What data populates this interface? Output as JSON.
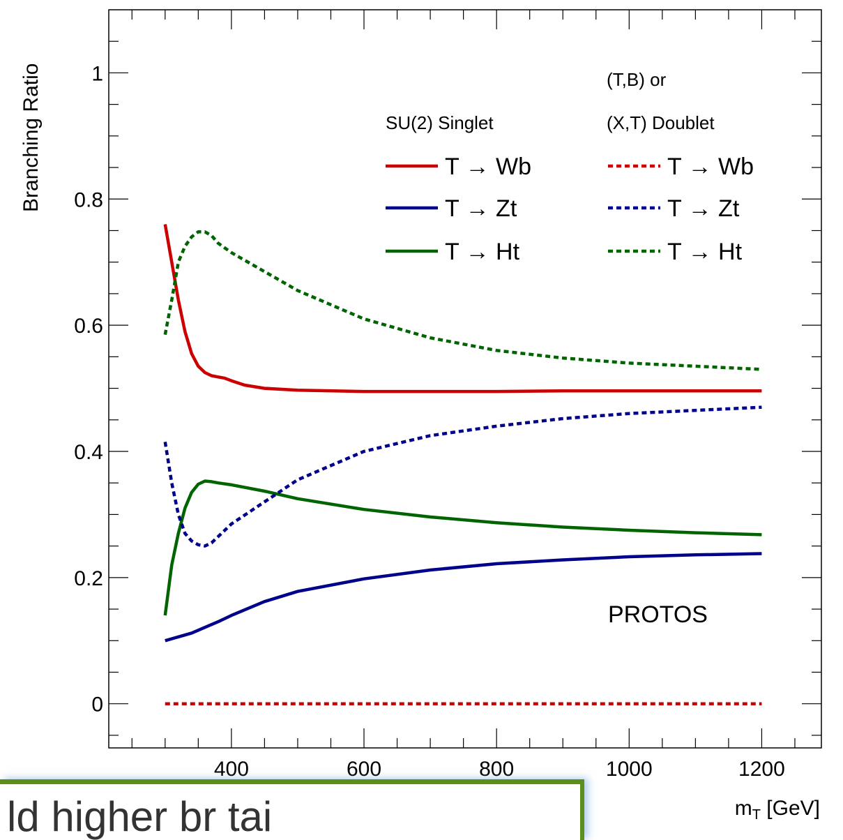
{
  "chart_data": {
    "type": "line",
    "xlabel": "m",
    "xlabel_sub": "T",
    "xlabel_unit": " [GeV]",
    "ylabel": "Branching Ratio",
    "xlim": [
      215,
      1290
    ],
    "ylim": [
      -0.07,
      1.1
    ],
    "xticks": [
      400,
      600,
      800,
      1000,
      1200
    ],
    "yticks": [
      0,
      0.2,
      0.4,
      0.6,
      0.8,
      1
    ],
    "grid": false,
    "legend_placement": "top-right",
    "legend_headers": [
      "SU(2) Singlet",
      "(T,B) or",
      "(X,T) Doublet"
    ],
    "annotation": "PROTOS",
    "arrow_glyph": "→",
    "series": [
      {
        "name": "T → Wb",
        "group": "singlet",
        "color": "#cc0000",
        "style": "solid",
        "x": [
          300,
          310,
          320,
          330,
          340,
          350,
          360,
          370,
          380,
          390,
          400,
          420,
          450,
          500,
          600,
          700,
          800,
          900,
          1000,
          1100,
          1200
        ],
        "y": [
          0.76,
          0.7,
          0.64,
          0.59,
          0.555,
          0.535,
          0.525,
          0.52,
          0.518,
          0.516,
          0.512,
          0.505,
          0.5,
          0.497,
          0.495,
          0.495,
          0.495,
          0.496,
          0.496,
          0.496,
          0.496
        ]
      },
      {
        "name": "T → Zt",
        "group": "singlet",
        "color": "#00008b",
        "style": "solid",
        "x": [
          300,
          340,
          380,
          400,
          450,
          500,
          600,
          700,
          800,
          900,
          1000,
          1100,
          1200
        ],
        "y": [
          0.1,
          0.112,
          0.13,
          0.14,
          0.162,
          0.178,
          0.198,
          0.212,
          0.222,
          0.228,
          0.233,
          0.236,
          0.238
        ]
      },
      {
        "name": "T → Ht",
        "group": "singlet",
        "color": "#006400",
        "style": "solid",
        "x": [
          300,
          310,
          320,
          330,
          340,
          350,
          360,
          370,
          380,
          400,
          450,
          500,
          600,
          700,
          800,
          900,
          1000,
          1100,
          1200
        ],
        "y": [
          0.14,
          0.22,
          0.27,
          0.31,
          0.335,
          0.348,
          0.353,
          0.352,
          0.35,
          0.347,
          0.337,
          0.325,
          0.308,
          0.296,
          0.287,
          0.28,
          0.275,
          0.271,
          0.268
        ]
      },
      {
        "name": "T → Wb",
        "group": "doublet",
        "color": "#cc0000",
        "style": "dotted",
        "x": [
          300,
          1200
        ],
        "y": [
          0.0,
          0.0
        ]
      },
      {
        "name": "T → Zt",
        "group": "doublet",
        "color": "#00008b",
        "style": "dotted",
        "x": [
          300,
          310,
          320,
          330,
          340,
          350,
          360,
          370,
          380,
          400,
          450,
          500,
          600,
          700,
          800,
          900,
          1000,
          1100,
          1200
        ],
        "y": [
          0.415,
          0.35,
          0.3,
          0.27,
          0.258,
          0.252,
          0.25,
          0.255,
          0.265,
          0.285,
          0.32,
          0.355,
          0.4,
          0.425,
          0.44,
          0.452,
          0.46,
          0.465,
          0.47
        ]
      },
      {
        "name": "T → Ht",
        "group": "doublet",
        "color": "#006400",
        "style": "dotted",
        "x": [
          300,
          310,
          320,
          330,
          340,
          350,
          360,
          370,
          380,
          400,
          450,
          500,
          600,
          700,
          800,
          900,
          1000,
          1100,
          1200
        ],
        "y": [
          0.585,
          0.64,
          0.7,
          0.725,
          0.74,
          0.748,
          0.748,
          0.742,
          0.73,
          0.715,
          0.685,
          0.655,
          0.61,
          0.58,
          0.56,
          0.548,
          0.54,
          0.535,
          0.53
        ]
      }
    ]
  },
  "overlay": {
    "text": "ld higher br tai"
  }
}
